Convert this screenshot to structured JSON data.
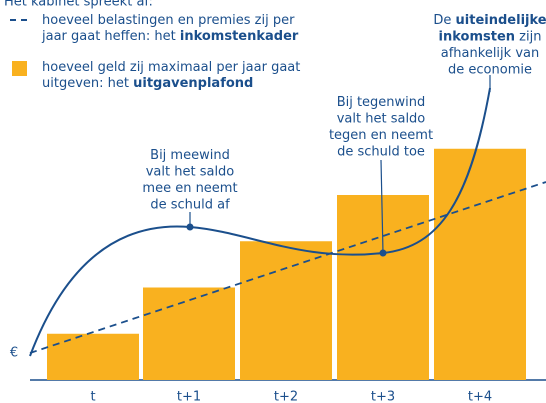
{
  "chart_data": {
    "type": "bar",
    "intro": "Het kabinet spreekt af:",
    "legend": [
      {
        "lines": [
          [
            "hoeveel belastingen en premies zij per"
          ],
          [
            "jaar gaat heffen: het ",
            {
              "bold": "inkomstenkader"
            }
          ]
        ]
      },
      {
        "lines": [
          [
            "hoeveel geld zij maximaal per jaar gaat"
          ],
          [
            "uitgeven: het ",
            {
              "bold": "uitgavenplafond"
            }
          ]
        ]
      }
    ],
    "annotations": [
      {
        "lines": [
          [
            "Bij meewind"
          ],
          [
            "valt het saldo"
          ],
          [
            "mee en neemt"
          ],
          [
            "de schuld af"
          ]
        ]
      },
      {
        "lines": [
          [
            "Bij tegenwind"
          ],
          [
            "valt het saldo"
          ],
          [
            "tegen en neemt"
          ],
          [
            "de schuld toe"
          ]
        ]
      },
      {
        "lines": [
          [
            "De ",
            {
              "bold": "uiteindelijke"
            }
          ],
          [
            {
              "bold": "inkomsten"
            },
            " zijn"
          ],
          [
            "afhankelijk van"
          ],
          [
            "de economie"
          ]
        ]
      }
    ],
    "y_label": "€",
    "categories": [
      "t",
      "t+1",
      "t+2",
      "t+3",
      "t+4"
    ],
    "values": [
      1,
      2,
      3,
      4,
      5
    ],
    "color": "#f9b11f",
    "line_color": "#1b4f8c",
    "ylim": [
      0,
      8
    ]
  }
}
